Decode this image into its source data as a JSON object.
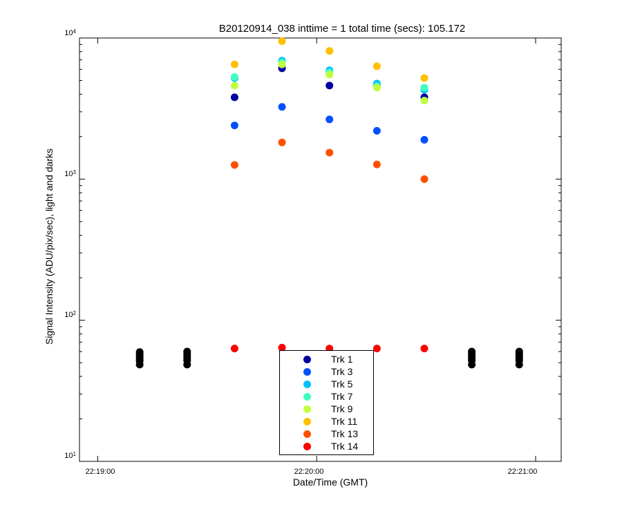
{
  "chart_data": {
    "type": "scatter",
    "title": "B20120914_038 inttime = 1 total time (secs): 105.172",
    "xlabel": "Date/Time (GMT)",
    "ylabel": "Signal Intensity (ADU/pix/sec), light and darks",
    "yscale": "log",
    "ylim": [
      10,
      10000
    ],
    "xlim_seconds": [
      -5,
      127
    ],
    "x_unit": "seconds after 22:19:00",
    "x_ticks": [
      {
        "value": 0,
        "label": "22:19:00"
      },
      {
        "value": 60,
        "label": "22:20:00"
      },
      {
        "value": 120,
        "label": "22:21:00"
      }
    ],
    "y_ticks": [
      {
        "value": 10,
        "base": "10",
        "exp": "1"
      },
      {
        "value": 100,
        "base": "10",
        "exp": "2"
      },
      {
        "value": 1000,
        "base": "10",
        "exp": "3"
      },
      {
        "value": 10000,
        "base": "10",
        "exp": "4"
      }
    ],
    "legend_position": "bottom-center",
    "series": [
      {
        "name": "Trk 1",
        "color": "#00009f",
        "x": [
          37.5,
          50.5,
          63.5,
          76.5,
          89.5
        ],
        "y": [
          3800,
          6100,
          4600,
          4650,
          3800
        ]
      },
      {
        "name": "Trk 3",
        "color": "#0050ff",
        "x": [
          37.5,
          50.5,
          63.5,
          76.5,
          89.5
        ],
        "y": [
          2400,
          3250,
          2650,
          2200,
          1900
        ]
      },
      {
        "name": "Trk 5",
        "color": "#00c0ff",
        "x": [
          37.5,
          50.5,
          63.5,
          76.5,
          89.5
        ],
        "y": [
          5200,
          6900,
          5900,
          4750,
          4300
        ]
      },
      {
        "name": "Trk 7",
        "color": "#40ffc0",
        "x": [
          37.5,
          50.5,
          63.5,
          76.5,
          89.5
        ],
        "y": [
          5300,
          6700,
          5700,
          4550,
          4450
        ]
      },
      {
        "name": "Trk 9",
        "color": "#c0ff40",
        "x": [
          37.5,
          50.5,
          63.5,
          76.5,
          89.5
        ],
        "y": [
          4600,
          6500,
          5500,
          4450,
          3600
        ]
      },
      {
        "name": "Trk 11",
        "color": "#ffc000",
        "x": [
          37.5,
          50.5,
          63.5,
          76.5,
          89.5
        ],
        "y": [
          6500,
          9500,
          8100,
          6300,
          5200
        ]
      },
      {
        "name": "Trk 13",
        "color": "#ff5000",
        "x": [
          37.5,
          50.5,
          63.5,
          76.5,
          89.5
        ],
        "y": [
          1260,
          1820,
          1540,
          1270,
          1000
        ]
      },
      {
        "name": "Trk 14",
        "color": "#ff0000",
        "x": [
          37.5,
          50.5,
          63.5,
          76.5,
          89.5
        ],
        "y": [
          63,
          64,
          63,
          63,
          63
        ]
      }
    ],
    "darks": {
      "name": "darks",
      "color": "#000000",
      "x": [
        11.5,
        11.5,
        11.5,
        11.5,
        11.5,
        11.5,
        24.5,
        24.5,
        24.5,
        24.5,
        24.5,
        24.5,
        102.5,
        102.5,
        102.5,
        102.5,
        102.5,
        102.5,
        115.5,
        115.5,
        115.5,
        115.5,
        115.5,
        115.5
      ],
      "y": [
        59.5,
        57.5,
        55.5,
        53.5,
        51.5,
        48.5,
        60,
        58,
        56,
        54,
        52,
        48.5,
        60,
        58,
        56,
        54,
        52,
        48.5,
        60,
        58,
        56,
        54,
        52,
        48.5
      ]
    }
  }
}
